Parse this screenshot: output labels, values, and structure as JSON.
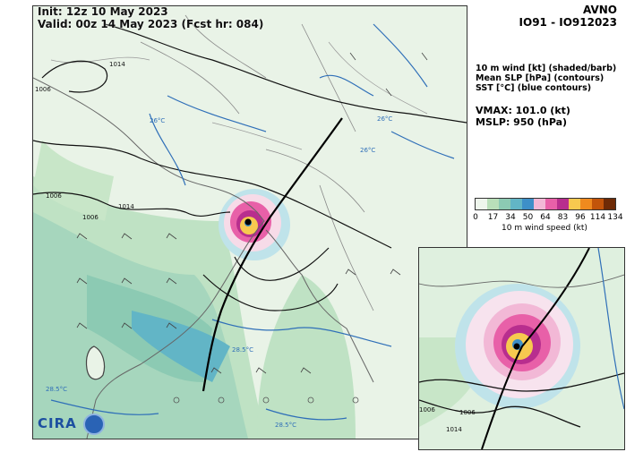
{
  "header": {
    "init_line": "Init:   12z 10 May 2023",
    "valid_line": "Valid: 00z 14 May 2023 (Fcst hr: 084)"
  },
  "model": "AVNO",
  "storm_id": "IO91 - IO912023",
  "legend": {
    "line1": "10 m wind [kt] (shaded/barb)",
    "line2": "Mean SLP [hPa] (contours)",
    "line3": "SST [°C] (blue contours)"
  },
  "stats": {
    "vmax": "VMAX: 101.0 (kt)",
    "mslp": "MSLP:  950 (hPa)"
  },
  "colorbar": {
    "ticks": [
      "0",
      "17",
      "34",
      "50",
      "64",
      "83",
      "96",
      "114",
      "134"
    ],
    "label": "10 m wind speed (kt)",
    "colors": [
      "#eef6ec",
      "#b9dfb9",
      "#8ccab3",
      "#62b5c6",
      "#3d8fc8",
      "#f2b8d6",
      "#e860a8",
      "#b82e8e",
      "#f7c94f",
      "#f08a1e",
      "#c2540a",
      "#6e2a06"
    ]
  },
  "map_labels": {
    "slp_contours": [
      "1014",
      "1006",
      "1006",
      "1014",
      "1006"
    ],
    "sst_contours": [
      "26°C",
      "26°C",
      "26°C",
      "28.5°C",
      "28.5°C",
      "28.5°C"
    ],
    "inset_contours": [
      "1006",
      "1014",
      "1006"
    ]
  },
  "logo_text": "CIRA"
}
